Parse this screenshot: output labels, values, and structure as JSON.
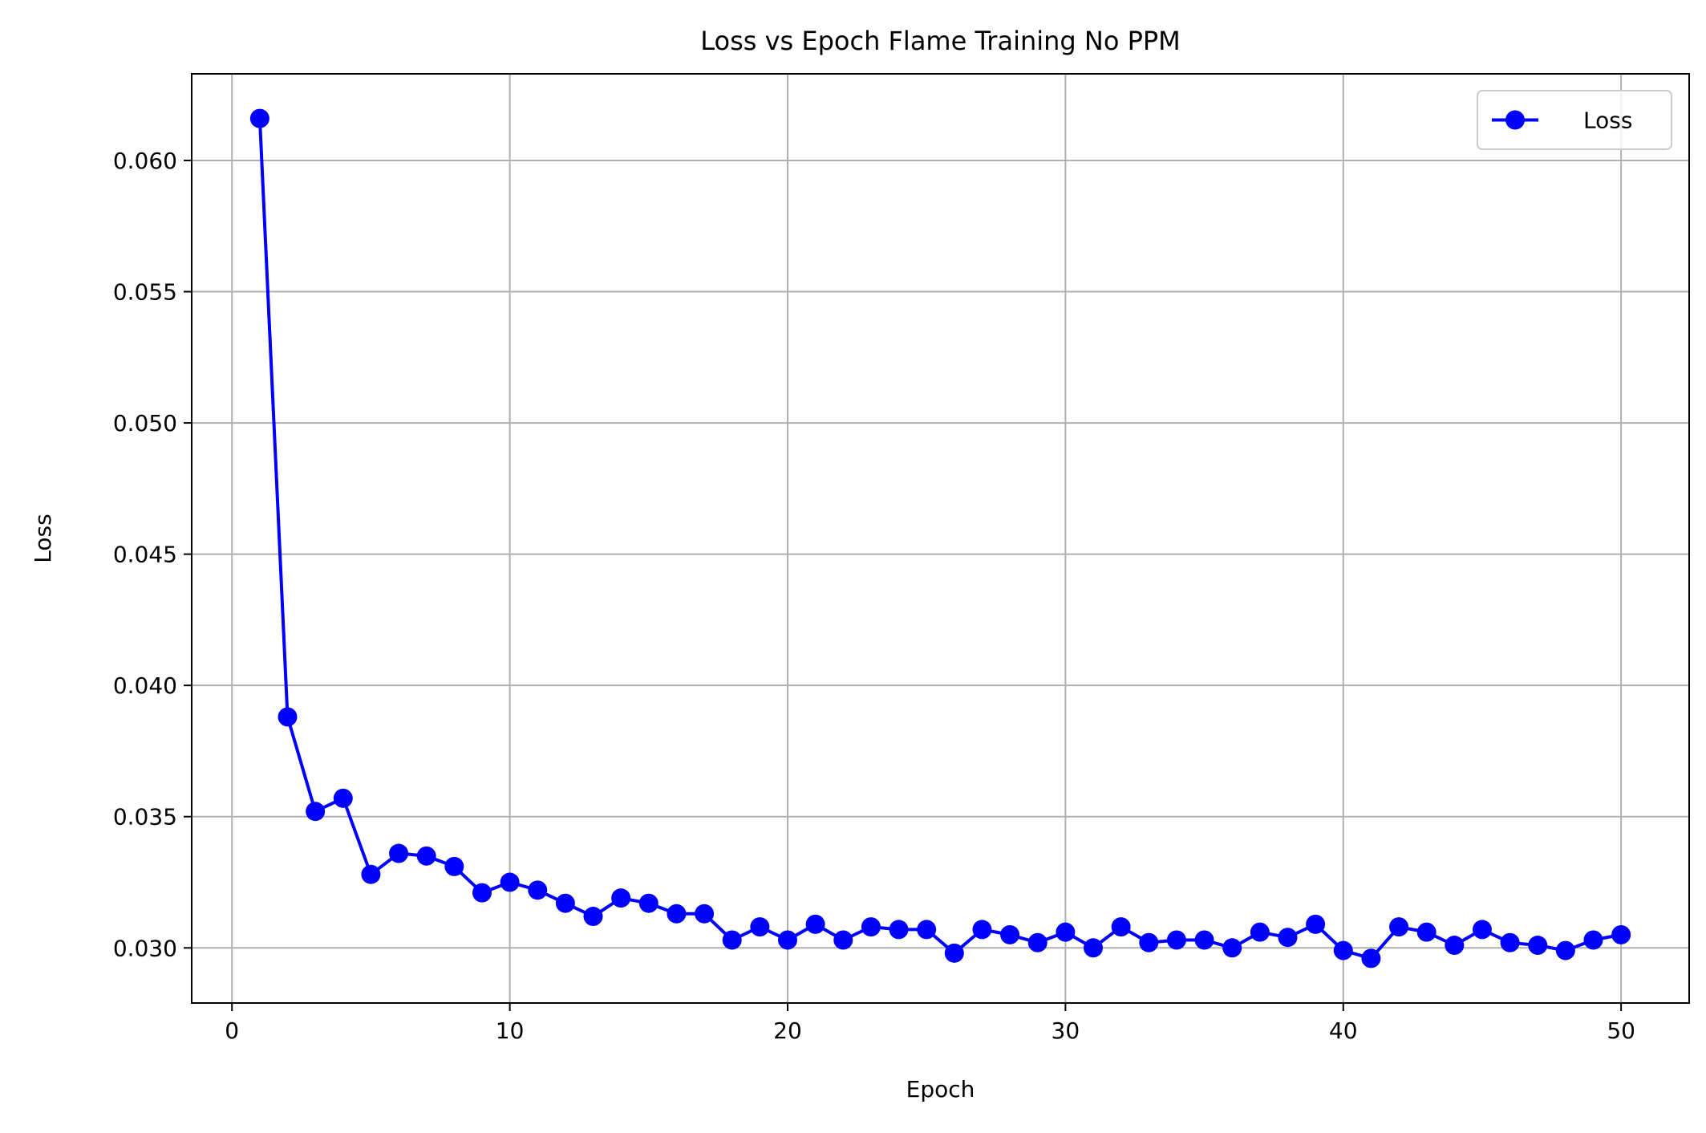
{
  "chart_data": {
    "type": "line",
    "title": "Loss vs Epoch Flame Training No PPM",
    "xlabel": "Epoch",
    "ylabel": "Loss",
    "xlim": [
      -1.45,
      52.45
    ],
    "ylim": [
      0.0279,
      0.0633
    ],
    "xticks": [
      0,
      10,
      20,
      30,
      40,
      50
    ],
    "xtick_labels": [
      "0",
      "10",
      "20",
      "30",
      "40",
      "50"
    ],
    "yticks": [
      0.03,
      0.035,
      0.04,
      0.045,
      0.05,
      0.055,
      0.06
    ],
    "ytick_labels": [
      "0.030",
      "0.035",
      "0.040",
      "0.045",
      "0.050",
      "0.055",
      "0.060"
    ],
    "grid": true,
    "legend_position": "top-right",
    "series": [
      {
        "name": "Loss",
        "color": "#0000ff",
        "marker": "circle",
        "x": [
          1,
          2,
          3,
          4,
          5,
          6,
          7,
          8,
          9,
          10,
          11,
          12,
          13,
          14,
          15,
          16,
          17,
          18,
          19,
          20,
          21,
          22,
          23,
          24,
          25,
          26,
          27,
          28,
          29,
          30,
          31,
          32,
          33,
          34,
          35,
          36,
          37,
          38,
          39,
          40,
          41,
          42,
          43,
          44,
          45,
          46,
          47,
          48,
          49,
          50
        ],
        "y": [
          0.0616,
          0.0388,
          0.0352,
          0.0357,
          0.0328,
          0.0336,
          0.0335,
          0.0331,
          0.0321,
          0.0325,
          0.0322,
          0.0317,
          0.0312,
          0.0319,
          0.0317,
          0.0313,
          0.0313,
          0.0303,
          0.0308,
          0.0303,
          0.0309,
          0.0303,
          0.0308,
          0.0307,
          0.0307,
          0.0298,
          0.0307,
          0.0305,
          0.0302,
          0.0306,
          0.03,
          0.0308,
          0.0302,
          0.0303,
          0.0303,
          0.03,
          0.0306,
          0.0304,
          0.0309,
          0.0299,
          0.0296,
          0.0308,
          0.0306,
          0.0301,
          0.0307,
          0.0302,
          0.0301,
          0.0299,
          0.0303,
          0.0305
        ]
      }
    ]
  }
}
